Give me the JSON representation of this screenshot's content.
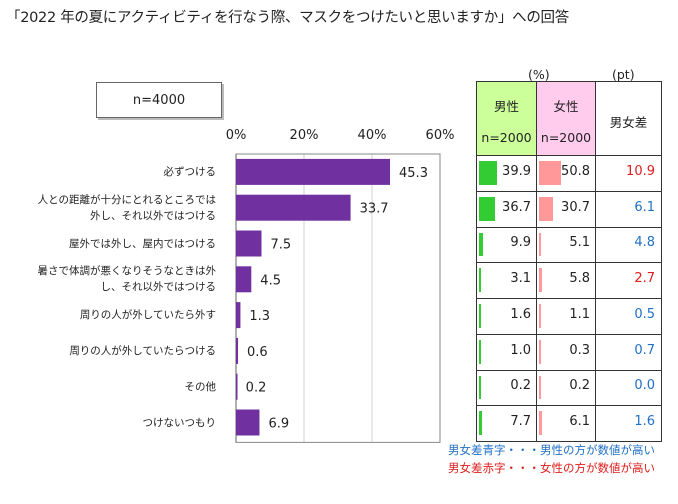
{
  "title": "「2022 年の夏にアクティビティを行なう際、マスクをつけたいと思いますか」への回答",
  "sample_label": "n=4000",
  "chart_data": {
    "type": "bar",
    "orientation": "horizontal",
    "x_ticks": [
      "0%",
      "20%",
      "40%",
      "60%"
    ],
    "xlim": [
      0,
      60
    ],
    "categories": [
      [
        "必ずつける"
      ],
      [
        "人との距離が十分にとれるところでは",
        "外し、それ以外ではつける"
      ],
      [
        "屋外では外し、屋内ではつける"
      ],
      [
        "暑さで体調が悪くなりそうなときは外",
        "し、それ以外ではつける"
      ],
      [
        "周りの人が外していたら外す"
      ],
      [
        "周りの人が外していたらつける"
      ],
      [
        "その他"
      ],
      [
        "つけないつもり"
      ]
    ],
    "values": [
      45.3,
      33.7,
      7.5,
      4.5,
      1.3,
      0.6,
      0.2,
      6.9
    ],
    "value_labels": [
      "45.3",
      "33.7",
      "7.5",
      "4.5",
      "1.3",
      "0.6",
      "0.2",
      "6.9"
    ],
    "bar_color": "#7030a0"
  },
  "table": {
    "unit_pct": "(%)",
    "unit_pt": "(pt)",
    "male_header": "男性",
    "male_n": "n=2000",
    "female_header": "女性",
    "female_n": "n=2000",
    "diff_header": "男女差",
    "male_color": "#ccff99",
    "female_color": "#ffccee",
    "male_bar_color": "#33cc33",
    "female_bar_color": "#ff9999",
    "rows": [
      {
        "male": 39.9,
        "female": 50.8,
        "male_label": "39.9",
        "female_label": "50.8",
        "diff": "10.9",
        "higher": "female"
      },
      {
        "male": 36.7,
        "female": 30.7,
        "male_label": "36.7",
        "female_label": "30.7",
        "diff": "6.1",
        "higher": "male"
      },
      {
        "male": 9.9,
        "female": 5.1,
        "male_label": "9.9",
        "female_label": "5.1",
        "diff": "4.8",
        "higher": "male"
      },
      {
        "male": 3.1,
        "female": 5.8,
        "male_label": "3.1",
        "female_label": "5.8",
        "diff": "2.7",
        "higher": "female"
      },
      {
        "male": 1.6,
        "female": 1.1,
        "male_label": "1.6",
        "female_label": "1.1",
        "diff": "0.5",
        "higher": "male"
      },
      {
        "male": 1.0,
        "female": 0.3,
        "male_label": "1.0",
        "female_label": "0.3",
        "diff": "0.7",
        "higher": "male"
      },
      {
        "male": 0.2,
        "female": 0.2,
        "male_label": "0.2",
        "female_label": "0.2",
        "diff": "0.0",
        "higher": "male"
      },
      {
        "male": 7.7,
        "female": 6.1,
        "male_label": "7.7",
        "female_label": "6.1",
        "diff": "1.6",
        "higher": "male"
      }
    ]
  },
  "notes": {
    "blue_text": "男女差青字・・・男性の方が数値が高い",
    "red_text": "男女差赤字・・・女性の方が数値が高い",
    "blue_color": "#1f6fc5",
    "red_color": "#e01b1b"
  }
}
